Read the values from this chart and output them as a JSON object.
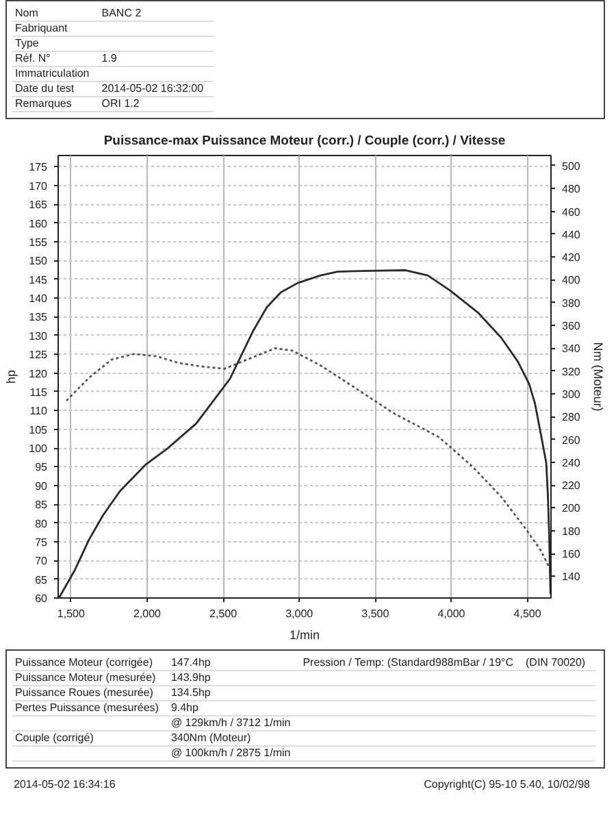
{
  "chart_data": [
    {
      "type": "other",
      "annotations": [
        "Nom\tBANC 2",
        "Fabriquant",
        "Type",
        "Réf. N°\t1.9",
        "Immatriculation",
        "Date du test\t2014-05-02 16:32:00",
        "Remarques\tORI 1.2"
      ]
    },
    {
      "type": "line",
      "title": "Puissance-max Puissance Moteur (corr.) / Couple (corr.) / Vitesse",
      "xlabel": "1/min",
      "ylabel": "hp",
      "y2label": "Nm (Moteur)",
      "xlim": [
        1415,
        4655
      ],
      "xticks": [
        {
          "value": 1500,
          "label": "1,500"
        },
        {
          "value": 2000,
          "label": "2,000"
        },
        {
          "value": 2500,
          "label": "2,500"
        },
        {
          "value": 3000,
          "label": "3,000"
        },
        {
          "value": 3500,
          "label": "3,500"
        },
        {
          "value": 4000,
          "label": "4,000"
        },
        {
          "value": 4500,
          "label": "4,500"
        }
      ],
      "ylim": [
        60,
        178
      ],
      "yticks": [
        60,
        65,
        70,
        75,
        80,
        85,
        90,
        95,
        100,
        105,
        110,
        115,
        120,
        125,
        130,
        135,
        140,
        145,
        150,
        155,
        160,
        165,
        170,
        175
      ],
      "y2lim": [
        121,
        509
      ],
      "y2ticks": [
        140,
        160,
        180,
        200,
        220,
        240,
        260,
        280,
        300,
        320,
        340,
        360,
        380,
        400,
        420,
        440,
        460,
        480,
        500
      ],
      "grid": true,
      "line_style": "solid",
      "series": [
        {
          "color": "#2a2a2a",
          "x": [
            1420,
            1525,
            1617,
            1709,
            1821,
            1988,
            2137,
            2322,
            2471,
            2545,
            2694,
            2786,
            2879,
            2990,
            3139,
            3251,
            3400,
            3700,
            3845,
            3992,
            4178,
            4326,
            4438,
            4512,
            4549,
            4587,
            4624,
            4635,
            4643,
            4649,
            4652
          ],
          "values": [
            60,
            67.5,
            75.5,
            82,
            88.5,
            95.5,
            100,
            106.5,
            114.5,
            118.5,
            131,
            137.5,
            141.5,
            144,
            146,
            147,
            147.2,
            147.4,
            146,
            142,
            136,
            129.5,
            123,
            117,
            112,
            104,
            96,
            87,
            77,
            66,
            61
          ]
        },
        {
          "color": "#555555",
          "axis": "y2",
          "line_style": "dotted",
          "x": [
            1469,
            1617,
            1765,
            1914,
            2062,
            2210,
            2360,
            2508,
            2656,
            2842,
            2953,
            3139,
            3324,
            3621,
            3919,
            4141,
            4326,
            4476,
            4587,
            4643
          ],
          "values": [
            294,
            314,
            330,
            335,
            333,
            327,
            324,
            322,
            330,
            340,
            338,
            325,
            309,
            283,
            262,
            236,
            210,
            184,
            163,
            148
          ]
        }
      ]
    },
    {
      "type": "other",
      "annotations": [
        "Puissance Moteur (corrigée)\t147.4hp\tPression / Temp: (Standard988mBar / 19°C\t(DIN 70020)",
        "Puissance Moteur (mesurée)\t143.9hp",
        "Puissance Roues (mesurée)\t134.5hp",
        "Pertes Puissance (mesurées)\t9.4hp",
        "\t@ 129km/h / 3712 1/min",
        "Couple (corrigé)\t340Nm (Moteur)",
        "\t@ 100km/h / 2875 1/min"
      ]
    },
    {
      "type": "other",
      "annotations": [
        "2014-05-02 16:34:16\tCopyright(C) 95-10 5.40, 10/02/98"
      ]
    }
  ]
}
